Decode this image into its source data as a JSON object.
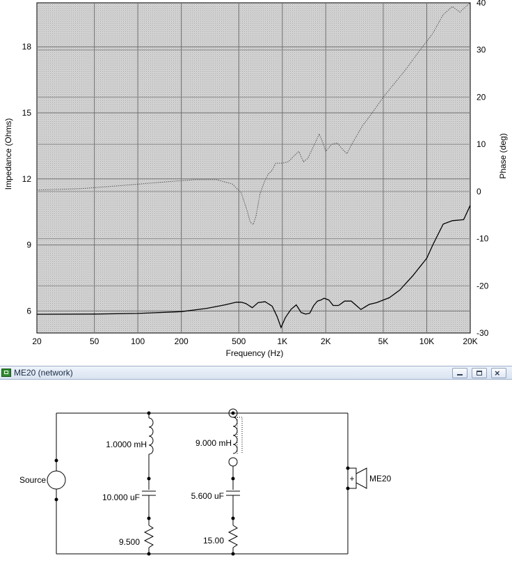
{
  "graph": {
    "left_axis_label": "Impedance (Ohms)",
    "right_axis_label": "Phase (deg)",
    "bottom_axis_label": "Frequency (Hz)",
    "x_ticks": [
      "20",
      "50",
      "100",
      "200",
      "500",
      "1K",
      "2K",
      "5K",
      "10K",
      "20K"
    ],
    "left_ticks": [
      "6",
      "9",
      "12",
      "15",
      "18"
    ],
    "right_ticks": [
      "40",
      "30",
      "20",
      "10",
      "0",
      "-10",
      "-20",
      "-30"
    ],
    "plot_bg": "#c9c9c9",
    "chart_data": {
      "type": "line",
      "x_scale": "log",
      "xlim": [
        20,
        20000
      ],
      "ylim_left": [
        5,
        20
      ],
      "ylim_right": [
        -30,
        40
      ],
      "grid": true,
      "series": [
        {
          "axis": "left",
          "style": "solid",
          "color": "#000000",
          "x": [
            20,
            50,
            100,
            200,
            300,
            400,
            480,
            520,
            560,
            620,
            680,
            760,
            850,
            920,
            980,
            1050,
            1150,
            1250,
            1350,
            1450,
            1550,
            1650,
            1750,
            1850,
            1950,
            2100,
            2250,
            2450,
            2700,
            3000,
            3500,
            4000,
            4500,
            5000,
            5500,
            6500,
            8000,
            10000,
            11000,
            13000,
            15000,
            18000,
            20000
          ],
          "y": [
            5.85,
            5.86,
            5.89,
            5.97,
            6.12,
            6.28,
            6.4,
            6.4,
            6.34,
            6.15,
            6.38,
            6.42,
            6.22,
            5.75,
            5.25,
            5.7,
            6.08,
            6.28,
            5.93,
            5.86,
            5.9,
            6.25,
            6.45,
            6.5,
            6.58,
            6.5,
            6.25,
            6.25,
            6.45,
            6.45,
            6.07,
            6.3,
            6.38,
            6.5,
            6.6,
            6.95,
            7.6,
            8.4,
            9.0,
            9.95,
            10.1,
            10.15,
            10.8
          ]
        },
        {
          "axis": "right",
          "style": "dotted",
          "color": "#555555",
          "x": [
            20,
            40,
            80,
            150,
            250,
            350,
            450,
            520,
            570,
            600,
            630,
            660,
            700,
            750,
            800,
            850,
            900,
            1000,
            1100,
            1200,
            1300,
            1400,
            1500,
            1600,
            1700,
            1800,
            1900,
            2000,
            2200,
            2400,
            2600,
            2800,
            3000,
            3300,
            3600,
            4000,
            5000,
            7000,
            9000,
            11000,
            13000,
            15000,
            17000,
            18000,
            20000
          ],
          "y": [
            0.3,
            0.6,
            1.3,
            2.0,
            2.5,
            2.5,
            1.6,
            -0.3,
            -4.0,
            -6.5,
            -7.0,
            -5.0,
            -0.5,
            2.0,
            3.7,
            4.5,
            6.0,
            6.0,
            6.3,
            7.5,
            8.5,
            6.3,
            7.0,
            8.8,
            10.5,
            12.2,
            10.5,
            8.5,
            10.0,
            10.3,
            9.0,
            8.0,
            9.8,
            12.0,
            14.0,
            15.8,
            20.0,
            25.5,
            30.0,
            33.5,
            37.5,
            39.2,
            38.0,
            38.8,
            40.0
          ]
        }
      ]
    }
  },
  "network_window": {
    "title": "ME20 (network)",
    "components": {
      "source_label": "Source",
      "inductor1": "1.0000 mH",
      "capacitor1": "10.000 uF",
      "resistor1": "9.500",
      "inductor2": "9.000 mH",
      "capacitor2": "5.600 uF",
      "resistor2": "15.00",
      "speaker_label": "ME20",
      "speaker_polarity": "+"
    }
  }
}
